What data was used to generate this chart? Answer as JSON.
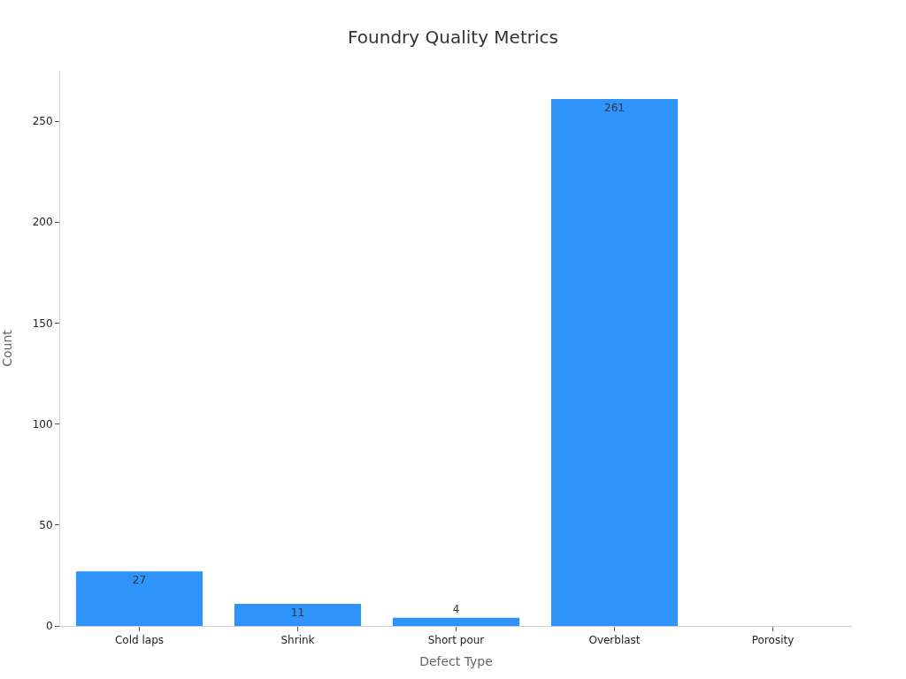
{
  "chart_data": {
    "type": "bar",
    "title": "Foundry Quality Metrics",
    "xlabel": "Defect Type",
    "ylabel": "Count",
    "categories": [
      "Cold laps",
      "Shrink",
      "Short pour",
      "Overblast",
      "Porosity"
    ],
    "values": [
      27,
      11,
      4,
      261,
      0
    ],
    "value_labels": [
      "27",
      "11",
      "4",
      "261",
      null
    ],
    "color": "#2e93fa",
    "ylim": [
      0,
      275
    ],
    "yticks": [
      0,
      50,
      100,
      150,
      200,
      250
    ],
    "grid": false,
    "legend": false
  }
}
